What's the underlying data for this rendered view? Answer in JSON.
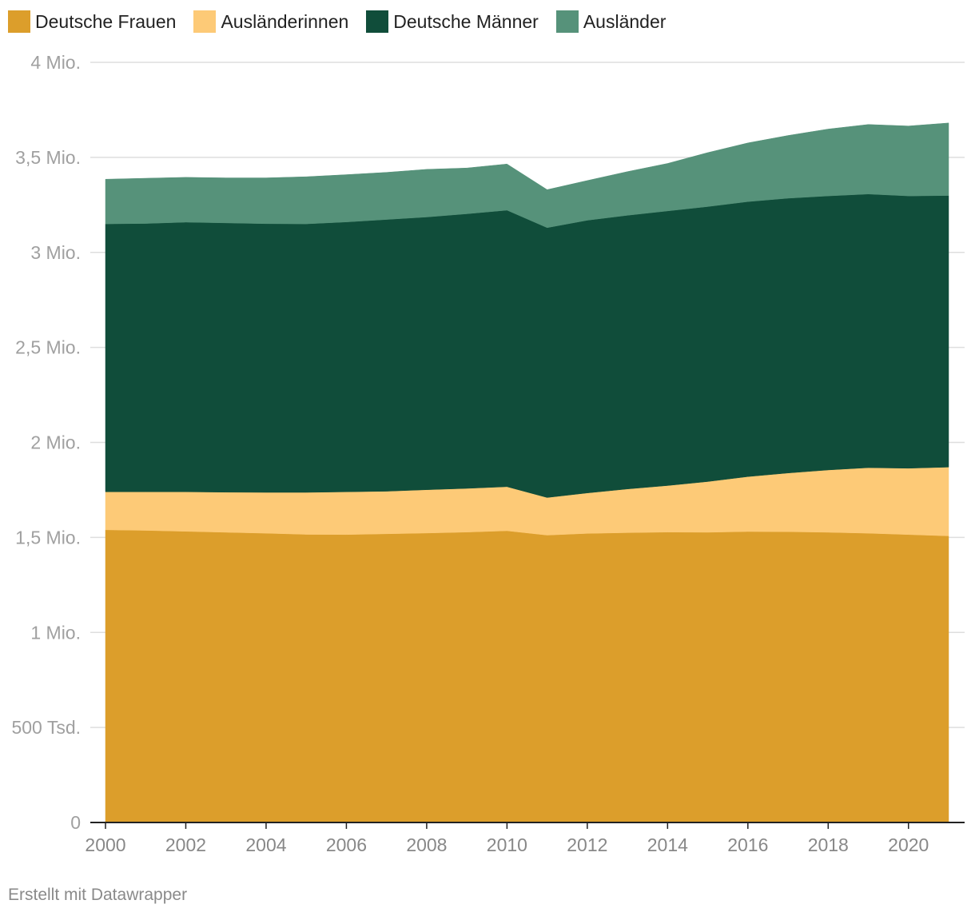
{
  "chart_data": {
    "type": "area",
    "stacked": true,
    "x": [
      2000,
      2001,
      2002,
      2003,
      2004,
      2005,
      2006,
      2007,
      2008,
      2009,
      2010,
      2011,
      2012,
      2013,
      2014,
      2015,
      2016,
      2017,
      2018,
      2019,
      2020,
      2021
    ],
    "series": [
      {
        "name": "Deutsche Frauen",
        "color": "#dc9e2b",
        "values": [
          1540000,
          1537000,
          1532000,
          1527000,
          1522000,
          1516000,
          1515000,
          1519000,
          1523000,
          1528000,
          1535000,
          1512000,
          1521000,
          1525000,
          1528000,
          1527000,
          1531000,
          1530000,
          1527000,
          1522000,
          1515000,
          1508000
        ]
      },
      {
        "name": "Ausländerinnen",
        "color": "#fdca77",
        "values": [
          200000,
          203000,
          208000,
          211000,
          215000,
          221000,
          225000,
          224000,
          228000,
          230000,
          232000,
          198000,
          213000,
          230000,
          245000,
          267000,
          289000,
          309000,
          328000,
          345000,
          349000,
          362000
        ]
      },
      {
        "name": "Deutsche Männer",
        "color": "#104d3a",
        "values": [
          1410000,
          1412000,
          1419000,
          1417000,
          1414000,
          1413000,
          1420000,
          1430000,
          1435000,
          1445000,
          1455000,
          1420000,
          1435000,
          1440000,
          1445000,
          1447000,
          1447000,
          1446000,
          1442000,
          1440000,
          1433000,
          1429000
        ]
      },
      {
        "name": "Ausländer",
        "color": "#56927a",
        "values": [
          235000,
          238000,
          236000,
          237000,
          241000,
          248000,
          249000,
          248000,
          251000,
          241000,
          243000,
          200000,
          209000,
          230000,
          250000,
          284000,
          309000,
          330000,
          352000,
          366000,
          368000,
          382000
        ]
      }
    ],
    "ylim": [
      0,
      4000000
    ],
    "yticks": [
      {
        "value": 0,
        "label": "0"
      },
      {
        "value": 500000,
        "label": "500 Tsd."
      },
      {
        "value": 1000000,
        "label": "1 Mio."
      },
      {
        "value": 1500000,
        "label": "1,5 Mio."
      },
      {
        "value": 2000000,
        "label": "2 Mio."
      },
      {
        "value": 2500000,
        "label": "2,5 Mio."
      },
      {
        "value": 3000000,
        "label": "3 Mio."
      },
      {
        "value": 3500000,
        "label": "3,5 Mio."
      },
      {
        "value": 4000000,
        "label": "4 Mio."
      }
    ],
    "xticks": [
      2000,
      2002,
      2004,
      2006,
      2008,
      2010,
      2012,
      2014,
      2016,
      2018,
      2020
    ],
    "grid": true,
    "legend": "top-left"
  },
  "footer": {
    "credit": "Erstellt mit Datawrapper"
  }
}
